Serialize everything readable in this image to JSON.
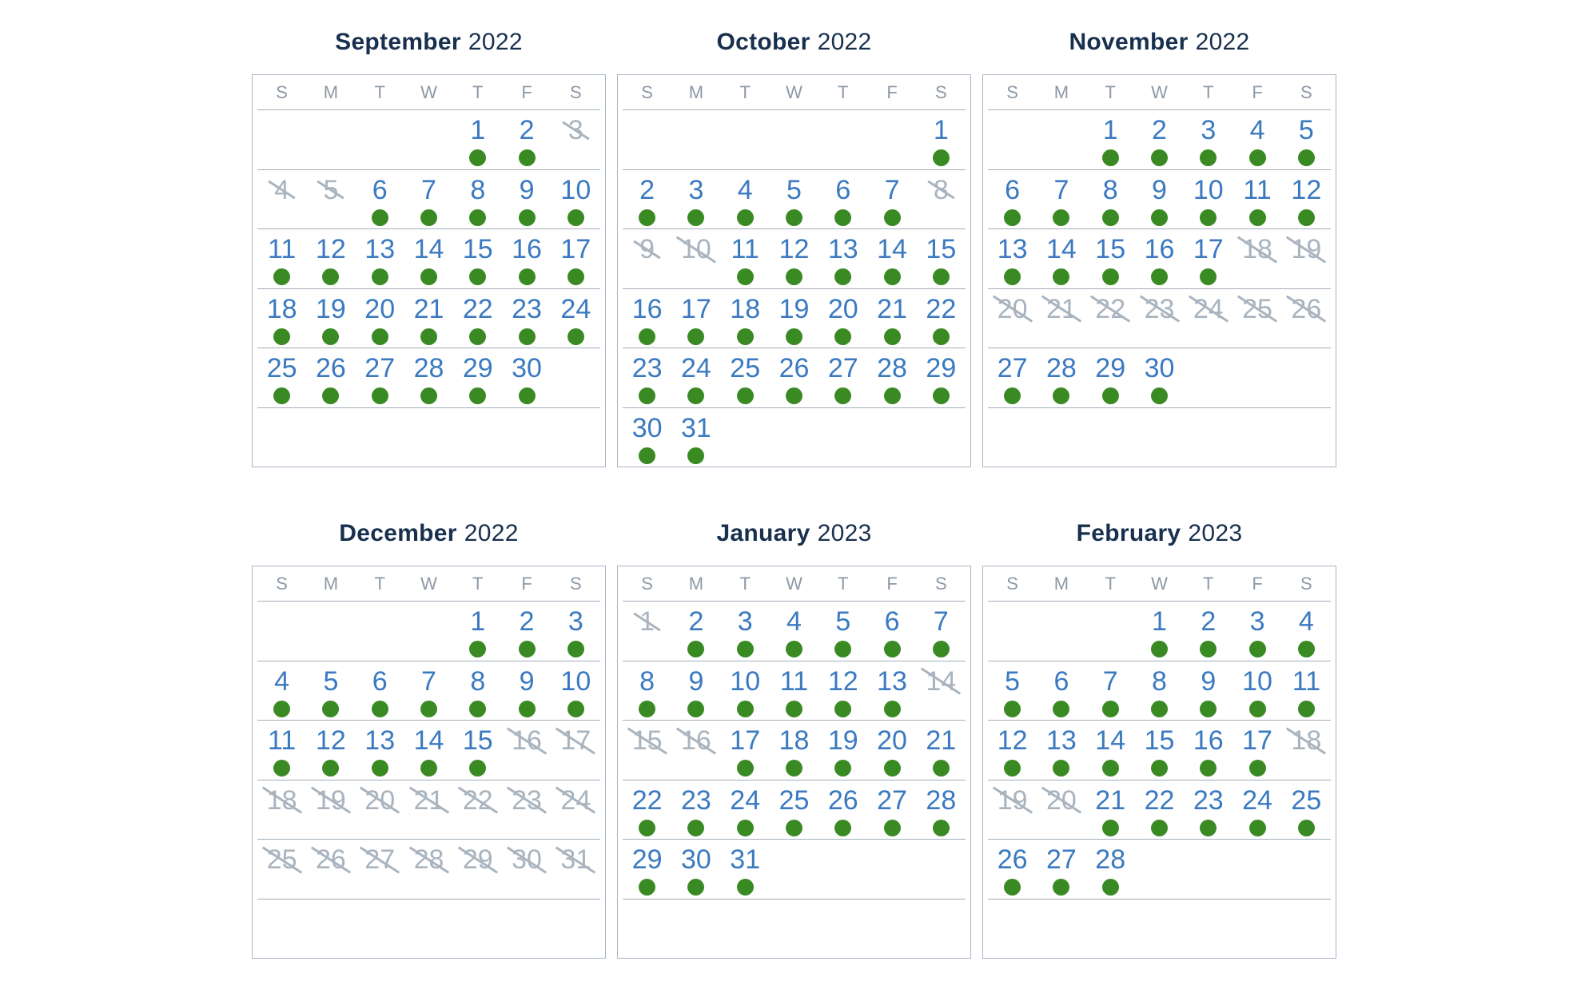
{
  "colors": {
    "title_navy": "#18304e",
    "day_number_blue": "#3b7ac0",
    "available_dot_green": "#3a8a24",
    "crossed_out_gray": "#a9b4bf",
    "grid_border": "#a7b5c4"
  },
  "weekday_headers": [
    "S",
    "M",
    "T",
    "W",
    "T",
    "F",
    "S"
  ],
  "months": [
    {
      "name": "September",
      "year": "2022",
      "weeks": [
        [
          null,
          null,
          null,
          null,
          {
            "day": "1",
            "status": "available"
          },
          {
            "day": "2",
            "status": "available"
          },
          {
            "day": "3",
            "status": "crossed_out"
          }
        ],
        [
          {
            "day": "4",
            "status": "crossed_out"
          },
          {
            "day": "5",
            "status": "crossed_out"
          },
          {
            "day": "6",
            "status": "available"
          },
          {
            "day": "7",
            "status": "available"
          },
          {
            "day": "8",
            "status": "available"
          },
          {
            "day": "9",
            "status": "available"
          },
          {
            "day": "10",
            "status": "available"
          }
        ],
        [
          {
            "day": "11",
            "status": "available"
          },
          {
            "day": "12",
            "status": "available"
          },
          {
            "day": "13",
            "status": "available"
          },
          {
            "day": "14",
            "status": "available"
          },
          {
            "day": "15",
            "status": "available"
          },
          {
            "day": "16",
            "status": "available"
          },
          {
            "day": "17",
            "status": "available"
          }
        ],
        [
          {
            "day": "18",
            "status": "available"
          },
          {
            "day": "19",
            "status": "available"
          },
          {
            "day": "20",
            "status": "available"
          },
          {
            "day": "21",
            "status": "available"
          },
          {
            "day": "22",
            "status": "available"
          },
          {
            "day": "23",
            "status": "available"
          },
          {
            "day": "24",
            "status": "available"
          }
        ],
        [
          {
            "day": "25",
            "status": "available"
          },
          {
            "day": "26",
            "status": "available"
          },
          {
            "day": "27",
            "status": "available"
          },
          {
            "day": "28",
            "status": "available"
          },
          {
            "day": "29",
            "status": "available"
          },
          {
            "day": "30",
            "status": "available"
          },
          null
        ],
        [
          null,
          null,
          null,
          null,
          null,
          null,
          null
        ]
      ]
    },
    {
      "name": "October",
      "year": "2022",
      "weeks": [
        [
          null,
          null,
          null,
          null,
          null,
          null,
          {
            "day": "1",
            "status": "available"
          }
        ],
        [
          {
            "day": "2",
            "status": "available"
          },
          {
            "day": "3",
            "status": "available"
          },
          {
            "day": "4",
            "status": "available"
          },
          {
            "day": "5",
            "status": "available"
          },
          {
            "day": "6",
            "status": "available"
          },
          {
            "day": "7",
            "status": "available"
          },
          {
            "day": "8",
            "status": "crossed_out"
          }
        ],
        [
          {
            "day": "9",
            "status": "crossed_out"
          },
          {
            "day": "10",
            "status": "crossed_out"
          },
          {
            "day": "11",
            "status": "available"
          },
          {
            "day": "12",
            "status": "available"
          },
          {
            "day": "13",
            "status": "available"
          },
          {
            "day": "14",
            "status": "available"
          },
          {
            "day": "15",
            "status": "available"
          }
        ],
        [
          {
            "day": "16",
            "status": "available"
          },
          {
            "day": "17",
            "status": "available"
          },
          {
            "day": "18",
            "status": "available"
          },
          {
            "day": "19",
            "status": "available"
          },
          {
            "day": "20",
            "status": "available"
          },
          {
            "day": "21",
            "status": "available"
          },
          {
            "day": "22",
            "status": "available"
          }
        ],
        [
          {
            "day": "23",
            "status": "available"
          },
          {
            "day": "24",
            "status": "available"
          },
          {
            "day": "25",
            "status": "available"
          },
          {
            "day": "26",
            "status": "available"
          },
          {
            "day": "27",
            "status": "available"
          },
          {
            "day": "28",
            "status": "available"
          },
          {
            "day": "29",
            "status": "available"
          }
        ],
        [
          {
            "day": "30",
            "status": "available"
          },
          {
            "day": "31",
            "status": "available"
          },
          null,
          null,
          null,
          null,
          null
        ]
      ]
    },
    {
      "name": "November",
      "year": "2022",
      "weeks": [
        [
          null,
          null,
          {
            "day": "1",
            "status": "available"
          },
          {
            "day": "2",
            "status": "available"
          },
          {
            "day": "3",
            "status": "available"
          },
          {
            "day": "4",
            "status": "available"
          },
          {
            "day": "5",
            "status": "available"
          }
        ],
        [
          {
            "day": "6",
            "status": "available"
          },
          {
            "day": "7",
            "status": "available"
          },
          {
            "day": "8",
            "status": "available"
          },
          {
            "day": "9",
            "status": "available"
          },
          {
            "day": "10",
            "status": "available"
          },
          {
            "day": "11",
            "status": "available"
          },
          {
            "day": "12",
            "status": "available"
          }
        ],
        [
          {
            "day": "13",
            "status": "available"
          },
          {
            "day": "14",
            "status": "available"
          },
          {
            "day": "15",
            "status": "available"
          },
          {
            "day": "16",
            "status": "available"
          },
          {
            "day": "17",
            "status": "available"
          },
          {
            "day": "18",
            "status": "crossed_out"
          },
          {
            "day": "19",
            "status": "crossed_out"
          }
        ],
        [
          {
            "day": "20",
            "status": "crossed_out"
          },
          {
            "day": "21",
            "status": "crossed_out"
          },
          {
            "day": "22",
            "status": "crossed_out"
          },
          {
            "day": "23",
            "status": "crossed_out"
          },
          {
            "day": "24",
            "status": "crossed_out"
          },
          {
            "day": "25",
            "status": "crossed_out"
          },
          {
            "day": "26",
            "status": "crossed_out"
          }
        ],
        [
          {
            "day": "27",
            "status": "available"
          },
          {
            "day": "28",
            "status": "available"
          },
          {
            "day": "29",
            "status": "available"
          },
          {
            "day": "30",
            "status": "available"
          },
          null,
          null,
          null
        ],
        [
          null,
          null,
          null,
          null,
          null,
          null,
          null
        ]
      ]
    },
    {
      "name": "December",
      "year": "2022",
      "weeks": [
        [
          null,
          null,
          null,
          null,
          {
            "day": "1",
            "status": "available"
          },
          {
            "day": "2",
            "status": "available"
          },
          {
            "day": "3",
            "status": "available"
          }
        ],
        [
          {
            "day": "4",
            "status": "available"
          },
          {
            "day": "5",
            "status": "available"
          },
          {
            "day": "6",
            "status": "available"
          },
          {
            "day": "7",
            "status": "available"
          },
          {
            "day": "8",
            "status": "available"
          },
          {
            "day": "9",
            "status": "available"
          },
          {
            "day": "10",
            "status": "available"
          }
        ],
        [
          {
            "day": "11",
            "status": "available"
          },
          {
            "day": "12",
            "status": "available"
          },
          {
            "day": "13",
            "status": "available"
          },
          {
            "day": "14",
            "status": "available"
          },
          {
            "day": "15",
            "status": "available"
          },
          {
            "day": "16",
            "status": "crossed_out"
          },
          {
            "day": "17",
            "status": "crossed_out"
          }
        ],
        [
          {
            "day": "18",
            "status": "crossed_out"
          },
          {
            "day": "19",
            "status": "crossed_out"
          },
          {
            "day": "20",
            "status": "crossed_out"
          },
          {
            "day": "21",
            "status": "crossed_out"
          },
          {
            "day": "22",
            "status": "crossed_out"
          },
          {
            "day": "23",
            "status": "crossed_out"
          },
          {
            "day": "24",
            "status": "crossed_out"
          }
        ],
        [
          {
            "day": "25",
            "status": "crossed_out"
          },
          {
            "day": "26",
            "status": "crossed_out"
          },
          {
            "day": "27",
            "status": "crossed_out"
          },
          {
            "day": "28",
            "status": "crossed_out"
          },
          {
            "day": "29",
            "status": "crossed_out"
          },
          {
            "day": "30",
            "status": "crossed_out"
          },
          {
            "day": "31",
            "status": "crossed_out"
          }
        ],
        [
          null,
          null,
          null,
          null,
          null,
          null,
          null
        ]
      ]
    },
    {
      "name": "January",
      "year": "2023",
      "weeks": [
        [
          {
            "day": "1",
            "status": "crossed_out"
          },
          {
            "day": "2",
            "status": "available"
          },
          {
            "day": "3",
            "status": "available"
          },
          {
            "day": "4",
            "status": "available"
          },
          {
            "day": "5",
            "status": "available"
          },
          {
            "day": "6",
            "status": "available"
          },
          {
            "day": "7",
            "status": "available"
          }
        ],
        [
          {
            "day": "8",
            "status": "available"
          },
          {
            "day": "9",
            "status": "available"
          },
          {
            "day": "10",
            "status": "available"
          },
          {
            "day": "11",
            "status": "available"
          },
          {
            "day": "12",
            "status": "available"
          },
          {
            "day": "13",
            "status": "available"
          },
          {
            "day": "14",
            "status": "crossed_out"
          }
        ],
        [
          {
            "day": "15",
            "status": "crossed_out"
          },
          {
            "day": "16",
            "status": "crossed_out"
          },
          {
            "day": "17",
            "status": "available"
          },
          {
            "day": "18",
            "status": "available"
          },
          {
            "day": "19",
            "status": "available"
          },
          {
            "day": "20",
            "status": "available"
          },
          {
            "day": "21",
            "status": "available"
          }
        ],
        [
          {
            "day": "22",
            "status": "available"
          },
          {
            "day": "23",
            "status": "available"
          },
          {
            "day": "24",
            "status": "available"
          },
          {
            "day": "25",
            "status": "available"
          },
          {
            "day": "26",
            "status": "available"
          },
          {
            "day": "27",
            "status": "available"
          },
          {
            "day": "28",
            "status": "available"
          }
        ],
        [
          {
            "day": "29",
            "status": "available"
          },
          {
            "day": "30",
            "status": "available"
          },
          {
            "day": "31",
            "status": "available"
          },
          null,
          null,
          null,
          null
        ],
        [
          null,
          null,
          null,
          null,
          null,
          null,
          null
        ]
      ]
    },
    {
      "name": "February",
      "year": "2023",
      "weeks": [
        [
          null,
          null,
          null,
          {
            "day": "1",
            "status": "available"
          },
          {
            "day": "2",
            "status": "available"
          },
          {
            "day": "3",
            "status": "available"
          },
          {
            "day": "4",
            "status": "available"
          }
        ],
        [
          {
            "day": "5",
            "status": "available"
          },
          {
            "day": "6",
            "status": "available"
          },
          {
            "day": "7",
            "status": "available"
          },
          {
            "day": "8",
            "status": "available"
          },
          {
            "day": "9",
            "status": "available"
          },
          {
            "day": "10",
            "status": "available"
          },
          {
            "day": "11",
            "status": "available"
          }
        ],
        [
          {
            "day": "12",
            "status": "available"
          },
          {
            "day": "13",
            "status": "available"
          },
          {
            "day": "14",
            "status": "available"
          },
          {
            "day": "15",
            "status": "available"
          },
          {
            "day": "16",
            "status": "available"
          },
          {
            "day": "17",
            "status": "available"
          },
          {
            "day": "18",
            "status": "crossed_out"
          }
        ],
        [
          {
            "day": "19",
            "status": "crossed_out"
          },
          {
            "day": "20",
            "status": "crossed_out"
          },
          {
            "day": "21",
            "status": "available"
          },
          {
            "day": "22",
            "status": "available"
          },
          {
            "day": "23",
            "status": "available"
          },
          {
            "day": "24",
            "status": "available"
          },
          {
            "day": "25",
            "status": "available"
          }
        ],
        [
          {
            "day": "26",
            "status": "available"
          },
          {
            "day": "27",
            "status": "available"
          },
          {
            "day": "28",
            "status": "available"
          },
          null,
          null,
          null,
          null
        ],
        [
          null,
          null,
          null,
          null,
          null,
          null,
          null
        ]
      ]
    }
  ]
}
